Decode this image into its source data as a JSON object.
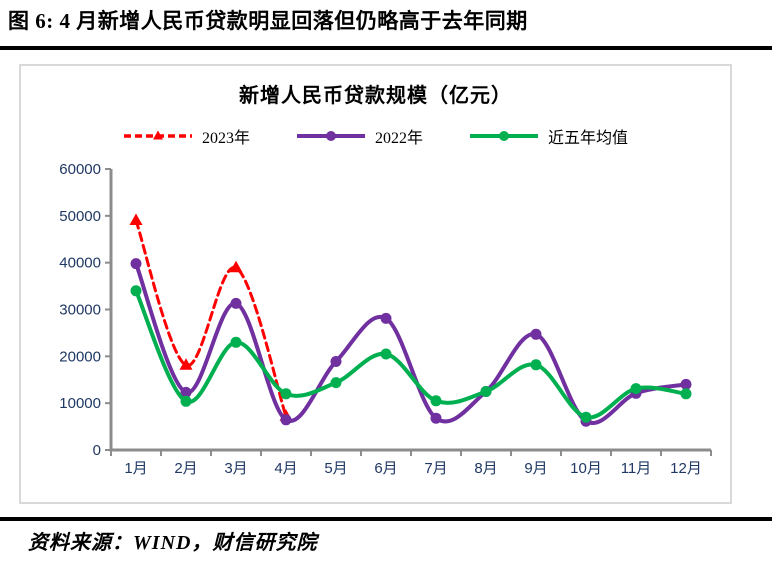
{
  "figure": {
    "header": "图 6:  4 月新增人民币贷款明显回落但仍略高于去年同期",
    "source": "资料来源：WIND，财信研究院"
  },
  "chart_data": {
    "type": "line",
    "title": "新增人民币贷款规模（亿元）",
    "categories": [
      "1月",
      "2月",
      "3月",
      "4月",
      "5月",
      "6月",
      "7月",
      "8月",
      "9月",
      "10月",
      "11月",
      "12月"
    ],
    "series": [
      {
        "name": "2023年",
        "color": "#FF0000",
        "line_style": "dashed",
        "marker": "triangle",
        "values": [
          49000,
          18100,
          38900,
          7188
        ]
      },
      {
        "name": "2022年",
        "color": "#7030A0",
        "line_style": "solid",
        "marker": "circle",
        "values": [
          39800,
          12300,
          31300,
          6454,
          18900,
          28100,
          6790,
          12500,
          24700,
          6152,
          12100,
          14000
        ]
      },
      {
        "name": "近五年均值",
        "color": "#00B050",
        "line_style": "solid",
        "marker": "circle",
        "values": [
          34000,
          10400,
          23000,
          12000,
          14400,
          20500,
          10500,
          12500,
          18200,
          7000,
          13100,
          12000
        ]
      }
    ],
    "ylim": [
      0,
      60000
    ],
    "yticks": [
      0,
      10000,
      20000,
      30000,
      40000,
      50000,
      60000
    ],
    "xlabel": "",
    "ylabel": "",
    "legend_position": "top",
    "grid": false,
    "smooth_lines": true,
    "axis_color": "#8C8C8C",
    "tick_label_color": "#1F3864"
  }
}
